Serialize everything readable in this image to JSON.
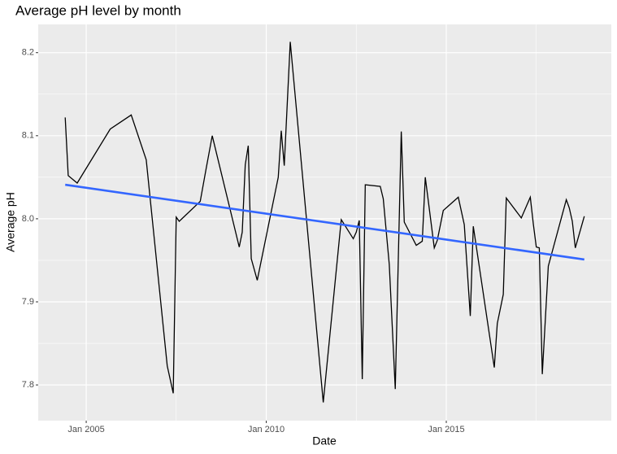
{
  "chart_data": {
    "type": "line",
    "title": "Average pH level by month",
    "x_label": "Date",
    "y_label": "Average pH",
    "series": [
      {
        "color": "#000000",
        "x": [
          "2004-06",
          "2004-07",
          "2004-10",
          "2005-09",
          "2006-04",
          "2006-09",
          "2007-04",
          "2007-06",
          "2007-07",
          "2007-08",
          "2008-03",
          "2008-05",
          "2008-07",
          "2009-04",
          "2009-05",
          "2009-06",
          "2009-07",
          "2009-08",
          "2009-10",
          "2010-05",
          "2010-06",
          "2010-07",
          "2010-09",
          "2011-08",
          "2012-02",
          "2012-06",
          "2012-07",
          "2012-08",
          "2012-09",
          "2012-10",
          "2013-03",
          "2013-04",
          "2013-06",
          "2013-08",
          "2013-10",
          "2013-11",
          "2014-03",
          "2014-05",
          "2014-06",
          "2014-09",
          "2014-10",
          "2014-12",
          "2015-05",
          "2015-07",
          "2015-09",
          "2015-10",
          "2016-05",
          "2016-06",
          "2016-08",
          "2016-09",
          "2017-02",
          "2017-05",
          "2017-06",
          "2017-07",
          "2017-08",
          "2017-09",
          "2017-11",
          "2018-05",
          "2018-06",
          "2018-07",
          "2018-08",
          "2018-11"
        ],
        "values": [
          8.122,
          8.052,
          8.043,
          8.108,
          8.125,
          8.071,
          7.823,
          7.79,
          8.002,
          7.997,
          8.021,
          8.061,
          8.1,
          7.966,
          7.984,
          8.065,
          8.088,
          7.952,
          7.926,
          8.05,
          8.106,
          8.064,
          8.213,
          7.779,
          7.999,
          7.976,
          7.984,
          7.998,
          7.807,
          8.041,
          8.039,
          8.024,
          7.945,
          7.795,
          8.105,
          7.996,
          7.968,
          7.973,
          8.05,
          7.965,
          7.974,
          8.01,
          8.026,
          7.993,
          7.883,
          7.991,
          7.821,
          7.874,
          7.909,
          8.025,
          8.001,
          8.026,
          7.994,
          7.966,
          7.965,
          7.813,
          7.943,
          8.023,
          8.013,
          7.997,
          7.965,
          8.003
        ]
      },
      {
        "color": "#3366ff",
        "x": [
          "2004-06",
          "2018-11"
        ],
        "values": [
          8.041,
          7.951
        ]
      }
    ],
    "xlim": [
      "2003-09",
      "2019-08"
    ],
    "xticks": [
      {
        "value": "2005-01",
        "label": "Jan 2005"
      },
      {
        "value": "2010-01",
        "label": "Jan 2010"
      },
      {
        "value": "2015-01",
        "label": "Jan 2015"
      }
    ],
    "minor_xticks": [
      "2007-07",
      "2012-07",
      "2017-07"
    ],
    "ylim": [
      7.757,
      8.234
    ],
    "yticks": [
      7.8,
      7.9,
      {
        "value": 8,
        "label": "8.0"
      },
      8.1,
      8.2
    ],
    "minor_yticks": [
      7.85,
      7.95,
      8.05,
      8.15
    ],
    "grid": true
  }
}
